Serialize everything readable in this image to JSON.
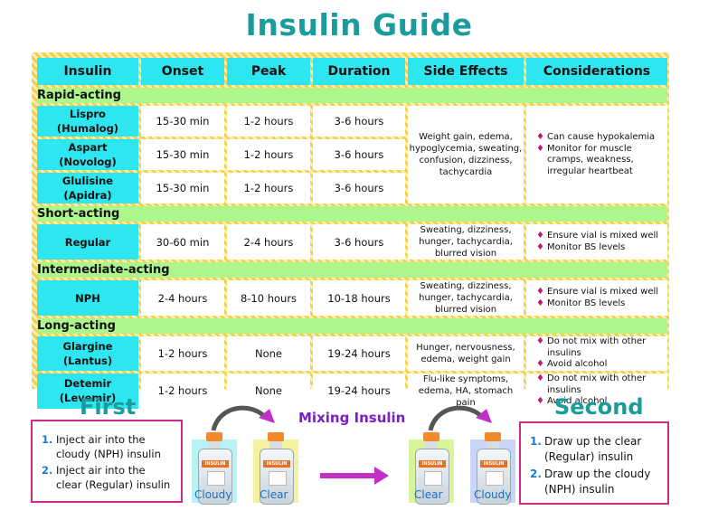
{
  "title": "Insulin Guide",
  "headers": [
    "Insulin",
    "Onset",
    "Peak",
    "Duration",
    "Side Effects",
    "Considerations"
  ],
  "sections": {
    "rapid": "Rapid-acting",
    "short": "Short-acting",
    "intermediate": "Intermediate-acting",
    "long": "Long-acting"
  },
  "rows": {
    "lispro": {
      "name1": "Lispro",
      "name2": "(Humalog)",
      "onset": "15-30 min",
      "peak": "1-2 hours",
      "duration": "3-6 hours"
    },
    "aspart": {
      "name1": "Aspart",
      "name2": "(Novolog)",
      "onset": "15-30 min",
      "peak": "1-2 hours",
      "duration": "3-6 hours"
    },
    "glulisine": {
      "name1": "Glulisine",
      "name2": "(Apidra)",
      "onset": "15-30 min",
      "peak": "1-2 hours",
      "duration": "3-6 hours"
    },
    "regular": {
      "name1": "Regular",
      "onset": "30-60 min",
      "peak": "2-4 hours",
      "duration": "3-6 hours",
      "effects": "Sweating, dizziness, hunger, tachycardia, blurred vision",
      "cons": [
        "Ensure vial is mixed well",
        "Monitor BS levels"
      ]
    },
    "nph": {
      "name1": "NPH",
      "onset": "2-4 hours",
      "peak": "8-10 hours",
      "duration": "10-18 hours",
      "effects": "Sweating, dizziness, hunger, tachycardia, blurred vision",
      "cons": [
        "Ensure vial is mixed well",
        "Monitor BS levels"
      ]
    },
    "glargine": {
      "name1": "Glargine",
      "name2": "(Lantus)",
      "onset": "1-2 hours",
      "peak": "None",
      "duration": "19-24 hours",
      "effects": "Hunger, nervousness, edema, weight gain",
      "cons": [
        "Do not mix with other insulins",
        "Avoid alcohol"
      ]
    },
    "detemir": {
      "name1": "Detemir",
      "name2": "(Levemir)",
      "onset": "1-2 hours",
      "peak": "None",
      "duration": "19-24 hours",
      "effects": "Flu-like symptoms, edema, HA, stomach pain",
      "cons": [
        "Do not mix with other insulins",
        "Avoid alcohol"
      ]
    }
  },
  "rapid_effects": "Weight gain, edema, hypoglycemia, sweating, confusion, dizziness, tachycardia",
  "rapid_cons": [
    "Can cause hypokalemia",
    "Monitor for muscle cramps, weakness, irregular heartbeat"
  ],
  "bottom": {
    "first_label": "First",
    "second_label": "Second",
    "mix_label": "Mixing Insulin",
    "first_steps": [
      {
        "num": "1.",
        "text": "Inject air into the cloudy (NPH) insulin"
      },
      {
        "num": "2.",
        "text": "Inject air into the clear (Regular) insulin"
      }
    ],
    "second_steps": [
      {
        "num": "1.",
        "text": "Draw up the clear (Regular) insulin"
      },
      {
        "num": "2.",
        "text": "Draw up the cloudy (NPH) insulin"
      }
    ],
    "vial_label": "INSULIN",
    "vials": [
      "Cloudy",
      "Clear",
      "Clear",
      "Cloudy"
    ]
  },
  "colors": {
    "accent": "#1a9c9c",
    "header_cyan": "#2ee6f0",
    "section_green": "#aef58c",
    "box_border": "#d0278b",
    "arrow": "#7a1ec8"
  }
}
